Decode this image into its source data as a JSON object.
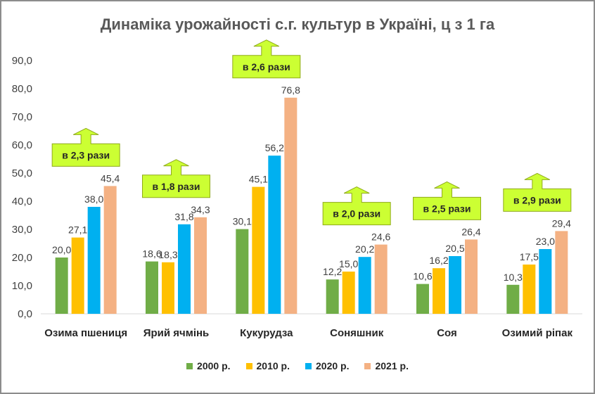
{
  "chart_data": {
    "type": "bar",
    "title": "Динаміка урожайності с.г. культур в Україні, ц з 1 га",
    "categories": [
      "Озима пшениця",
      "Ярий ячмінь",
      "Кукурудза",
      "Соняшник",
      "Соя",
      "Озимий ріпак"
    ],
    "series": [
      {
        "name": "2000 р.",
        "color": "#70ad47",
        "values": [
          20.0,
          18.6,
          30.1,
          12.2,
          10.6,
          10.3
        ]
      },
      {
        "name": "2010 р.",
        "color": "#ffc000",
        "values": [
          27.1,
          18.3,
          45.1,
          15.0,
          16.2,
          17.5
        ]
      },
      {
        "name": "2020 р.",
        "color": "#00b0f0",
        "values": [
          38.0,
          31.8,
          56.2,
          20.2,
          20.5,
          23.0
        ]
      },
      {
        "name": "2021 р.",
        "color": "#f4b183",
        "values": [
          45.4,
          34.3,
          76.8,
          24.6,
          26.4,
          29.4
        ]
      }
    ],
    "data_labels": [
      [
        "20,0",
        "18,6",
        "30,1",
        "12,2",
        "10,6",
        "10,3"
      ],
      [
        "27,1",
        "18,3",
        "45,1",
        "15,0",
        "16,2",
        "17,5"
      ],
      [
        "38,0",
        "31,8",
        "56,2",
        "20,2",
        "20,5",
        "23,0"
      ],
      [
        "45,4",
        "34,3",
        "76,8",
        "24,6",
        "26,4",
        "29,4"
      ]
    ],
    "annotations": [
      "в 2,3 рази",
      "в 1,8 рази",
      "в 2,6 рази",
      "в 2,0 рази",
      "в 2,5 рази",
      "в 2,9 рази"
    ],
    "annotation_color": "#ccff33",
    "ylim": [
      0,
      90
    ],
    "yticks": [
      "0,0",
      "10,0",
      "20,0",
      "30,0",
      "40,0",
      "50,0",
      "60,0",
      "70,0",
      "80,0",
      "90,0"
    ],
    "grid": false,
    "legend_position": "bottom"
  }
}
